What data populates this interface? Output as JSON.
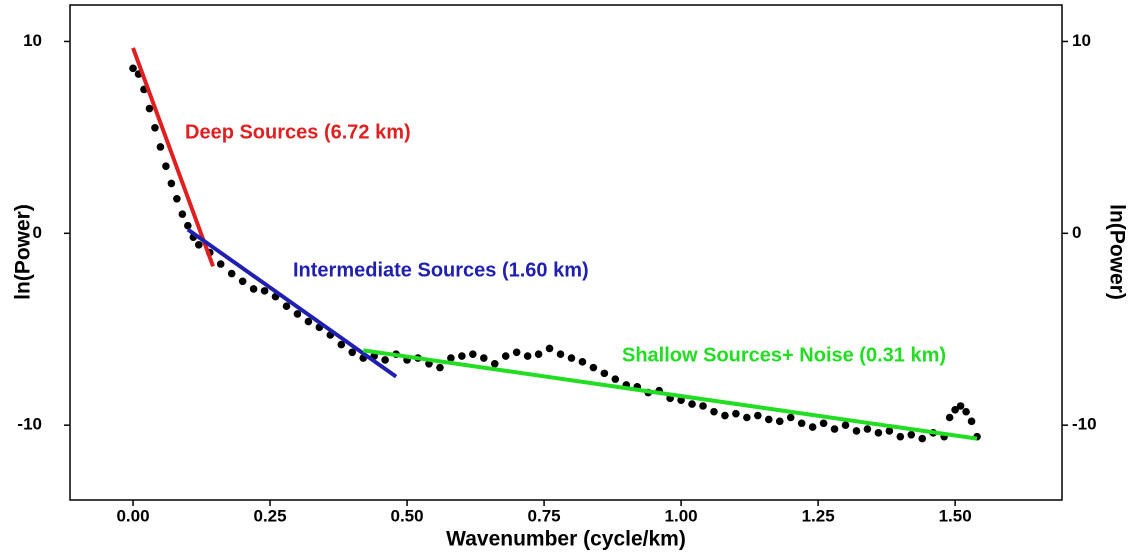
{
  "chart_data": {
    "type": "scatter",
    "xlabel": "Wavenumber (cycle/km)",
    "ylabel": "ln(Power)",
    "y2label": "ln(Power)",
    "xlim": [
      -0.115,
      1.695
    ],
    "ylim": [
      -13.9,
      11.9
    ],
    "y2lim": [
      -13.9,
      11.9
    ],
    "xticks": [
      {
        "value": 0,
        "label": "0.00"
      },
      {
        "value": 0.25,
        "label": "0.25"
      },
      {
        "value": 0.5,
        "label": "0.50"
      },
      {
        "value": 0.75,
        "label": "0.75"
      },
      {
        "value": 1,
        "label": "1.00"
      },
      {
        "value": 1.25,
        "label": "1.25"
      },
      {
        "value": 1.5,
        "label": "1.50"
      }
    ],
    "yticks": [
      10,
      0,
      -10
    ],
    "y2ticks": [
      10,
      0,
      -10
    ],
    "points": {
      "color": "#000000",
      "x": [
        0.0,
        0.01,
        0.02,
        0.03,
        0.04,
        0.05,
        0.06,
        0.07,
        0.08,
        0.09,
        0.1,
        0.11,
        0.12,
        0.14,
        0.16,
        0.18,
        0.2,
        0.22,
        0.24,
        0.26,
        0.28,
        0.3,
        0.32,
        0.34,
        0.36,
        0.38,
        0.4,
        0.42,
        0.44,
        0.46,
        0.48,
        0.5,
        0.52,
        0.54,
        0.56,
        0.58,
        0.6,
        0.62,
        0.64,
        0.66,
        0.68,
        0.7,
        0.72,
        0.74,
        0.76,
        0.78,
        0.8,
        0.82,
        0.84,
        0.86,
        0.88,
        0.9,
        0.92,
        0.94,
        0.96,
        0.98,
        1.0,
        1.02,
        1.04,
        1.06,
        1.08,
        1.1,
        1.12,
        1.14,
        1.16,
        1.18,
        1.2,
        1.22,
        1.24,
        1.26,
        1.28,
        1.3,
        1.32,
        1.34,
        1.36,
        1.38,
        1.4,
        1.42,
        1.44,
        1.46,
        1.48,
        1.49,
        1.5,
        1.51,
        1.52,
        1.53,
        1.54
      ],
      "values": [
        8.6,
        8.3,
        7.5,
        6.5,
        5.5,
        4.5,
        3.5,
        2.6,
        1.8,
        1.0,
        0.4,
        -0.2,
        -0.6,
        -1.0,
        -1.6,
        -2.1,
        -2.5,
        -2.9,
        -3.0,
        -3.3,
        -3.8,
        -4.2,
        -4.6,
        -4.9,
        -5.3,
        -5.8,
        -6.2,
        -6.5,
        -6.4,
        -6.6,
        -6.3,
        -6.6,
        -6.5,
        -6.8,
        -7.0,
        -6.5,
        -6.4,
        -6.3,
        -6.5,
        -6.8,
        -6.4,
        -6.2,
        -6.4,
        -6.3,
        -6.0,
        -6.3,
        -6.5,
        -6.7,
        -7.0,
        -7.3,
        -7.6,
        -7.9,
        -8.0,
        -8.3,
        -8.2,
        -8.6,
        -8.7,
        -8.9,
        -9.0,
        -9.3,
        -9.5,
        -9.4,
        -9.6,
        -9.5,
        -9.7,
        -9.8,
        -9.6,
        -9.9,
        -10.1,
        -9.9,
        -10.2,
        -10.0,
        -10.3,
        -10.2,
        -10.4,
        -10.3,
        -10.6,
        -10.5,
        -10.7,
        -10.4,
        -10.6,
        -9.6,
        -9.2,
        -9.0,
        -9.3,
        -9.8,
        -10.6
      ]
    },
    "fit_lines": [
      {
        "label": "Deep Sources (6.72 km)",
        "color": "#e02020",
        "x": [
          0.0,
          0.146
        ],
        "values": [
          9.66,
          -1.72
        ]
      },
      {
        "label": "Intermediate Sources (1.60 km)",
        "color": "#2020b0",
        "x": [
          0.1,
          0.48
        ],
        "values": [
          0.2,
          -7.47
        ]
      },
      {
        "label": "Shallow Sources+ Noise (0.31 km)",
        "color": "#22dd22",
        "x": [
          0.42,
          1.54
        ],
        "values": [
          -6.1,
          -10.7
        ]
      }
    ]
  }
}
